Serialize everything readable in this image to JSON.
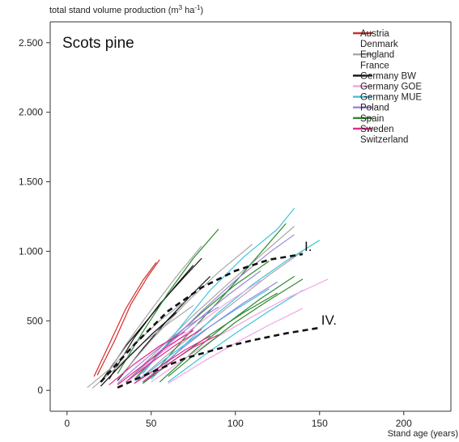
{
  "chart_data": {
    "type": "line",
    "title": "Scots pine",
    "ylabel_main": "total stand volume production (m",
    "ylabel_sup1": "3",
    "ylabel_mid": " ha",
    "ylabel_sup2": "-1",
    "ylabel_end": ")",
    "xlabel": "Stand age (years)",
    "xlim": [
      -10,
      228
    ],
    "ylim": [
      -150,
      2650
    ],
    "xticks": [
      0,
      50,
      100,
      150,
      200
    ],
    "xtick_labels": [
      "0",
      "50",
      "100",
      "150",
      "200"
    ],
    "yticks": [
      0,
      500,
      1000,
      1500,
      2000,
      2500
    ],
    "ytick_labels": [
      "0",
      "500",
      "1.000",
      "1.500",
      "2.000",
      "2.500"
    ],
    "grid": false,
    "legend_position": "top-right",
    "legend": [
      {
        "name": "Austria",
        "color": "#d62a2a"
      },
      {
        "name": "Denmark",
        "color": "none"
      },
      {
        "name": "England",
        "color": "#a8a8a8"
      },
      {
        "name": "France",
        "color": "none"
      },
      {
        "name": "Germany BW",
        "color": "#111111"
      },
      {
        "name": "Germany GOE",
        "color": "#f0a6e6"
      },
      {
        "name": "Germany MUE",
        "color": "#3ec4dc"
      },
      {
        "name": "Poland",
        "color": "#9b86d6"
      },
      {
        "name": "Spain",
        "color": "#2e8a32"
      },
      {
        "name": "Sweden",
        "color": "#e8288e"
      },
      {
        "name": "Switzerland",
        "color": "none"
      }
    ],
    "reference_curves": [
      {
        "label": "I.",
        "x": [
          20,
          40,
          60,
          80,
          100,
          120,
          140
        ],
        "y": [
          60,
          330,
          570,
          740,
          860,
          940,
          980
        ]
      },
      {
        "label": "IV.",
        "x": [
          30,
          50,
          70,
          90,
          110,
          130,
          150
        ],
        "y": [
          20,
          130,
          230,
          300,
          360,
          410,
          450
        ]
      }
    ],
    "series": [
      {
        "color": "#d62a2a",
        "x": [
          16,
          25,
          35,
          45,
          53
        ],
        "y": [
          100,
          330,
          590,
          790,
          920
        ]
      },
      {
        "color": "#d62a2a",
        "x": [
          18,
          28,
          38,
          48,
          55
        ],
        "y": [
          110,
          350,
          620,
          820,
          940
        ]
      },
      {
        "color": "#111111",
        "x": [
          25,
          40,
          55,
          70,
          80
        ],
        "y": [
          80,
          380,
          620,
          820,
          950
        ]
      },
      {
        "color": "#111111",
        "x": [
          20,
          35,
          50,
          65,
          75
        ],
        "y": [
          60,
          320,
          540,
          760,
          900
        ]
      },
      {
        "color": "#111111",
        "x": [
          30,
          45,
          60,
          75,
          85
        ],
        "y": [
          70,
          300,
          510,
          700,
          820
        ]
      },
      {
        "color": "#a8a8a8",
        "x": [
          22,
          35,
          50,
          65,
          80
        ],
        "y": [
          80,
          330,
          580,
          820,
          1040
        ]
      },
      {
        "color": "#a8a8a8",
        "x": [
          30,
          50,
          70,
          90,
          110
        ],
        "y": [
          80,
          360,
          620,
          850,
          1050
        ]
      },
      {
        "color": "#a8a8a8",
        "x": [
          35,
          55,
          75,
          95,
          115,
          135
        ],
        "y": [
          60,
          300,
          540,
          760,
          970,
          1180
        ]
      },
      {
        "color": "#a8a8a8",
        "x": [
          40,
          60,
          80,
          100,
          120,
          140
        ],
        "y": [
          50,
          260,
          450,
          640,
          830,
          1000
        ]
      },
      {
        "color": "#2e8a32",
        "x": [
          30,
          45,
          60,
          75,
          90
        ],
        "y": [
          120,
          420,
          700,
          950,
          1160
        ]
      },
      {
        "color": "#2e8a32",
        "x": [
          40,
          60,
          80,
          100,
          120
        ],
        "y": [
          80,
          340,
          560,
          760,
          930
        ]
      },
      {
        "color": "#2e8a32",
        "x": [
          55,
          75,
          95,
          115,
          135
        ],
        "y": [
          60,
          280,
          480,
          660,
          820
        ]
      },
      {
        "color": "#2e8a32",
        "x": [
          50,
          70,
          90,
          110,
          130
        ],
        "y": [
          100,
          380,
          640,
          920,
          1200
        ]
      },
      {
        "color": "#2e8a32",
        "x": [
          45,
          65,
          85,
          105,
          125
        ],
        "y": [
          50,
          230,
          400,
          560,
          700
        ]
      },
      {
        "color": "#3ec4dc",
        "x": [
          50,
          70,
          90,
          110,
          130,
          150
        ],
        "y": [
          80,
          330,
          560,
          760,
          930,
          1080
        ]
      },
      {
        "color": "#3ec4dc",
        "x": [
          45,
          65,
          85,
          105,
          125,
          135
        ],
        "y": [
          120,
          420,
          720,
          960,
          1160,
          1310
        ]
      },
      {
        "color": "#3ec4dc",
        "x": [
          60,
          80,
          100,
          120,
          140
        ],
        "y": [
          60,
          240,
          410,
          570,
          720
        ]
      },
      {
        "color": "#3ec4dc",
        "x": [
          40,
          60,
          80,
          100,
          120
        ],
        "y": [
          50,
          240,
          420,
          580,
          730
        ]
      },
      {
        "color": "#f0a6e6",
        "x": [
          50,
          70,
          90,
          110,
          130,
          155
        ],
        "y": [
          60,
          230,
          390,
          530,
          660,
          800
        ]
      },
      {
        "color": "#f0a6e6",
        "x": [
          35,
          55,
          75,
          95,
          115
        ],
        "y": [
          60,
          260,
          450,
          630,
          790
        ]
      },
      {
        "color": "#f0a6e6",
        "x": [
          60,
          80,
          100,
          120,
          140
        ],
        "y": [
          50,
          200,
          340,
          470,
          590
        ]
      },
      {
        "color": "#9b86d6",
        "x": [
          40,
          60,
          80,
          100,
          120,
          135
        ],
        "y": [
          70,
          330,
          570,
          790,
          990,
          1120
        ]
      },
      {
        "color": "#9b86d6",
        "x": [
          35,
          55,
          75,
          95,
          115
        ],
        "y": [
          60,
          280,
          480,
          680,
          860
        ]
      },
      {
        "color": "#9b86d6",
        "x": [
          45,
          65,
          85,
          105,
          125
        ],
        "y": [
          60,
          270,
          460,
          630,
          780
        ]
      },
      {
        "color": "#9b86d6",
        "x": [
          30,
          50,
          70,
          90
        ],
        "y": [
          50,
          260,
          450,
          600
        ]
      },
      {
        "color": "#e8288e",
        "x": [
          35,
          50,
          65,
          80
        ],
        "y": [
          60,
          200,
          330,
          440
        ]
      },
      {
        "color": "#e8288e",
        "x": [
          30,
          45,
          60,
          75
        ],
        "y": [
          40,
          180,
          320,
          430
        ]
      },
      {
        "color": "#e8288e",
        "x": [
          40,
          55,
          70,
          85
        ],
        "y": [
          50,
          170,
          290,
          390
        ]
      },
      {
        "color": "#e8288e",
        "x": [
          25,
          40,
          55,
          70
        ],
        "y": [
          40,
          190,
          320,
          420
        ]
      },
      {
        "color": "#e8288e",
        "x": [
          45,
          60,
          75,
          90
        ],
        "y": [
          60,
          190,
          310,
          400
        ]
      },
      {
        "color": "#a8a8a8",
        "x": [
          12,
          25,
          40,
          55,
          70
        ],
        "y": [
          20,
          150,
          330,
          500,
          640
        ]
      },
      {
        "color": "#a8a8a8",
        "x": [
          15,
          30,
          45,
          60,
          75
        ],
        "y": [
          15,
          170,
          340,
          480,
          610
        ]
      },
      {
        "color": "#111111",
        "x": [
          20,
          35,
          50,
          65
        ],
        "y": [
          30,
          220,
          400,
          560
        ]
      },
      {
        "color": "#2e8a32",
        "x": [
          60,
          80,
          100,
          120,
          140
        ],
        "y": [
          100,
          300,
          490,
          650,
          800
        ]
      }
    ]
  }
}
